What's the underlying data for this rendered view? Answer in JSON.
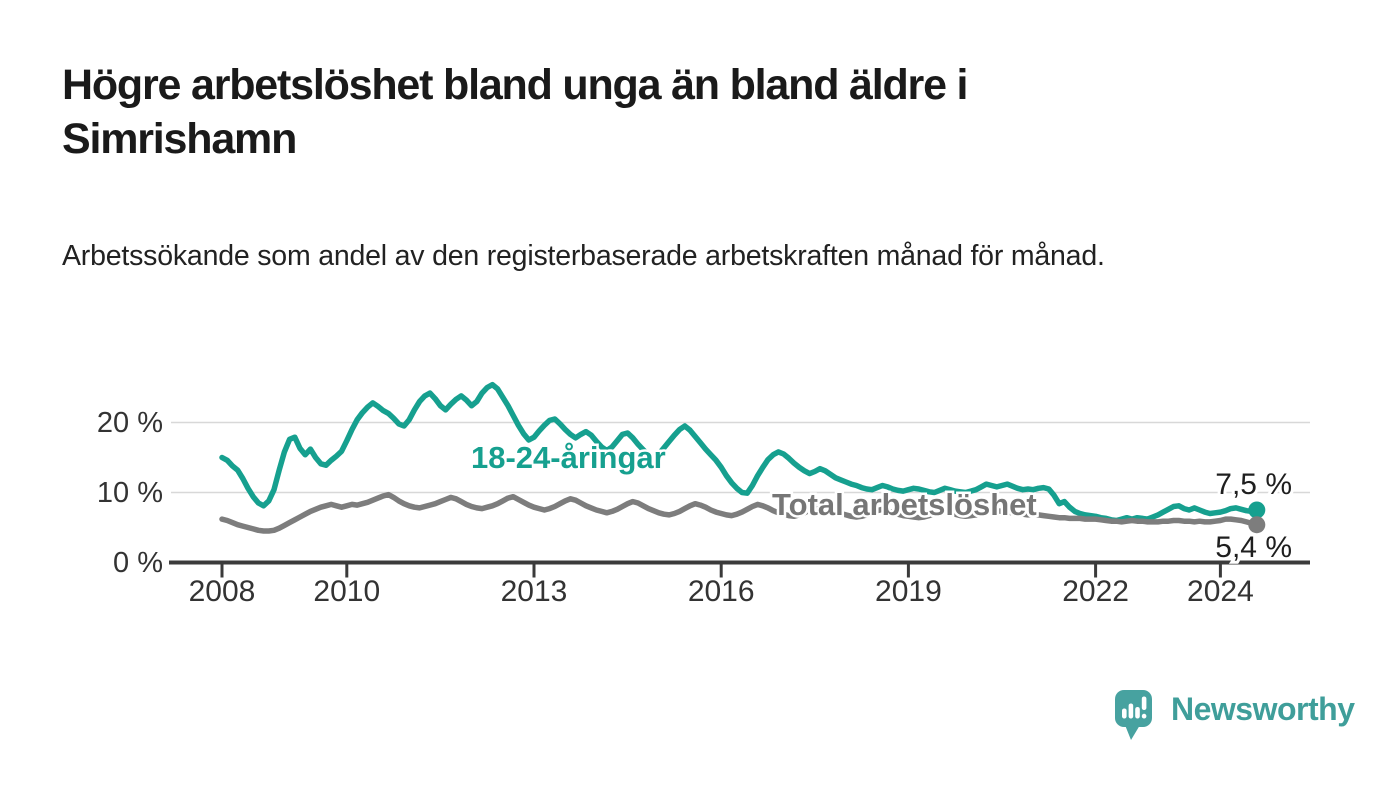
{
  "header": {
    "title_lines": [
      "Högre arbetslöshet bland unga än bland äldre i",
      "Simrishamn"
    ],
    "subtitle": "Arbetssökande som andel av den registerbaserade arbetskraften månad för månad."
  },
  "chart_data": {
    "type": "line",
    "title": "Högre arbetslöshet bland unga än bland äldre i Simrishamn",
    "subtitle": "Arbetssökande som andel av den registerbaserade arbetskraften månad för månad.",
    "unit": "%",
    "x_start": "2008-01",
    "x_end": "2024-08",
    "x_ticks": [
      2008,
      2010,
      2013,
      2016,
      2019,
      2022,
      2024
    ],
    "y_ticks": [
      {
        "value": 0,
        "label": "0 %"
      },
      {
        "value": 10,
        "label": "10 %"
      },
      {
        "value": 20,
        "label": "20 %"
      }
    ],
    "ylim": [
      0,
      26
    ],
    "grid": "horizontal",
    "legend_position": "inline-labels",
    "series": [
      {
        "name": "18-24-åringar",
        "color": "#16a08f",
        "end_value": 7.5,
        "end_label": "7,5 %",
        "values": [
          15.0,
          14.6,
          13.8,
          13.2,
          12.0,
          10.6,
          9.4,
          8.5,
          8.1,
          8.8,
          10.4,
          13.2,
          15.8,
          17.6,
          17.9,
          16.3,
          15.4,
          16.2,
          15.0,
          14.1,
          13.9,
          14.6,
          15.2,
          15.9,
          17.4,
          19.0,
          20.4,
          21.4,
          22.2,
          22.8,
          22.3,
          21.7,
          21.3,
          20.6,
          19.8,
          19.5,
          20.4,
          21.8,
          23.0,
          23.8,
          24.2,
          23.4,
          22.4,
          21.8,
          22.6,
          23.3,
          23.8,
          23.2,
          22.4,
          23.0,
          24.2,
          25.0,
          25.4,
          24.8,
          23.6,
          22.4,
          21.0,
          19.6,
          18.4,
          17.5,
          17.9,
          18.8,
          19.6,
          20.3,
          20.5,
          19.8,
          19.0,
          18.3,
          17.8,
          18.3,
          18.7,
          18.2,
          17.3,
          16.5,
          16.0,
          16.5,
          17.4,
          18.3,
          18.5,
          17.8,
          16.9,
          16.1,
          15.4,
          15.0,
          15.5,
          16.4,
          17.3,
          18.2,
          19.0,
          19.5,
          18.9,
          18.0,
          17.1,
          16.2,
          15.4,
          14.6,
          13.6,
          12.4,
          11.4,
          10.6,
          10.0,
          9.9,
          11.0,
          12.4,
          13.6,
          14.7,
          15.4,
          15.8,
          15.5,
          14.9,
          14.2,
          13.6,
          13.1,
          12.7,
          13.0,
          13.4,
          13.1,
          12.6,
          12.1,
          11.8,
          11.5,
          11.2,
          11.0,
          10.7,
          10.5,
          10.4,
          10.7,
          11.0,
          10.8,
          10.5,
          10.3,
          10.2,
          10.4,
          10.6,
          10.5,
          10.3,
          10.1,
          10.0,
          10.3,
          10.6,
          10.4,
          10.2,
          10.1,
          10.0,
          10.2,
          10.4,
          10.8,
          11.2,
          11.0,
          10.8,
          11.0,
          11.2,
          10.9,
          10.6,
          10.4,
          10.5,
          10.4,
          10.6,
          10.7,
          10.5,
          9.6,
          8.4,
          8.7,
          7.9,
          7.3,
          7.0,
          6.8,
          6.7,
          6.6,
          6.4,
          6.3,
          6.1,
          6.0,
          6.2,
          6.4,
          6.2,
          6.4,
          6.3,
          6.2,
          6.5,
          6.8,
          7.2,
          7.6,
          8.0,
          8.1,
          7.7,
          7.5,
          7.8,
          7.5,
          7.2,
          7.0,
          7.1,
          7.2,
          7.4,
          7.7,
          7.8,
          7.6,
          7.4,
          7.3,
          7.5
        ]
      },
      {
        "name": "Total arbetslöshet",
        "color": "#7d7d7d",
        "end_value": 5.4,
        "end_label": "5,4 %",
        "values": [
          6.2,
          6.0,
          5.7,
          5.4,
          5.2,
          5.0,
          4.8,
          4.6,
          4.5,
          4.5,
          4.6,
          4.9,
          5.3,
          5.7,
          6.1,
          6.5,
          6.9,
          7.3,
          7.6,
          7.9,
          8.1,
          8.3,
          8.1,
          7.9,
          8.1,
          8.3,
          8.2,
          8.4,
          8.6,
          8.9,
          9.2,
          9.5,
          9.7,
          9.3,
          8.8,
          8.4,
          8.1,
          7.9,
          7.8,
          8.0,
          8.2,
          8.4,
          8.7,
          9.0,
          9.3,
          9.1,
          8.7,
          8.3,
          8.0,
          7.8,
          7.7,
          7.9,
          8.1,
          8.4,
          8.8,
          9.2,
          9.4,
          9.0,
          8.6,
          8.2,
          7.9,
          7.7,
          7.5,
          7.7,
          8.0,
          8.4,
          8.8,
          9.1,
          8.9,
          8.5,
          8.1,
          7.8,
          7.5,
          7.3,
          7.1,
          7.3,
          7.6,
          8.0,
          8.4,
          8.7,
          8.5,
          8.1,
          7.7,
          7.4,
          7.1,
          6.9,
          6.8,
          7.0,
          7.3,
          7.7,
          8.1,
          8.4,
          8.2,
          7.9,
          7.5,
          7.2,
          7.0,
          6.8,
          6.7,
          6.9,
          7.2,
          7.6,
          8.0,
          8.3,
          8.1,
          7.8,
          7.4,
          7.1,
          6.9,
          6.7,
          6.6,
          6.8,
          7.1,
          7.5,
          7.9,
          8.1,
          7.9,
          7.6,
          7.3,
          7.0,
          6.8,
          6.6,
          6.5,
          6.6,
          6.8,
          7.1,
          7.4,
          7.6,
          7.4,
          7.1,
          6.9,
          6.7,
          6.6,
          6.5,
          6.4,
          6.5,
          6.7,
          7.0,
          7.2,
          7.3,
          7.1,
          6.9,
          6.7,
          6.6,
          6.7,
          6.8,
          7.1,
          7.4,
          7.5,
          7.4,
          7.3,
          7.2,
          7.1,
          7.0,
          6.9,
          6.8,
          6.9,
          6.8,
          6.7,
          6.6,
          6.5,
          6.4,
          6.4,
          6.3,
          6.3,
          6.3,
          6.2,
          6.2,
          6.2,
          6.1,
          6.0,
          5.9,
          5.9,
          5.8,
          5.9,
          6.0,
          5.9,
          5.9,
          5.8,
          5.8,
          5.8,
          5.9,
          5.9,
          6.0,
          6.0,
          5.9,
          5.9,
          5.8,
          5.9,
          5.8,
          5.8,
          5.9,
          6.0,
          6.2,
          6.2,
          6.1,
          6.0,
          5.8,
          5.6,
          5.4
        ]
      }
    ]
  },
  "branding": {
    "logo_text": "Newsworthy",
    "logo_text_color": "#3f9e9a",
    "logo_icon_color": "#47a2a0",
    "icon": "bar-chart-speech-bubble-icon"
  }
}
